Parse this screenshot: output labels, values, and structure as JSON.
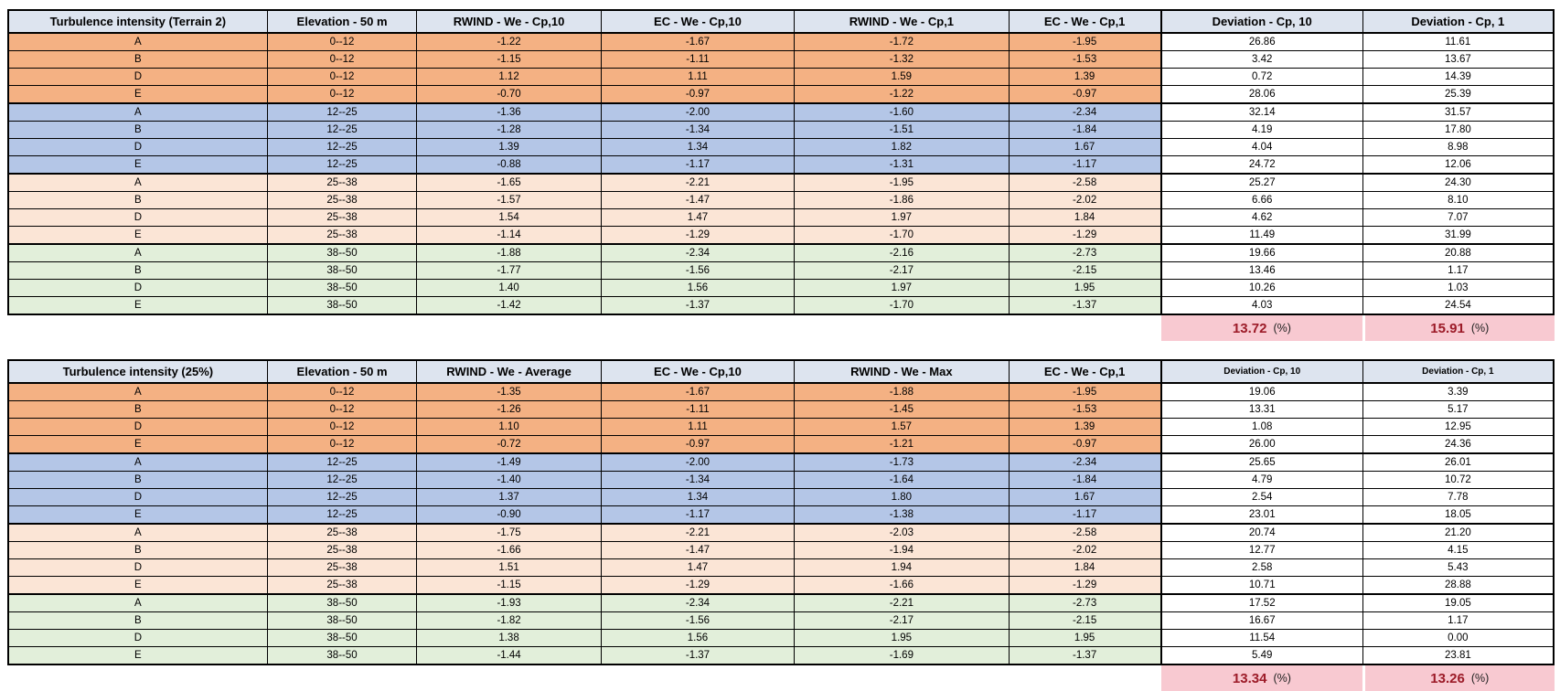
{
  "colors": {
    "header_bg": "#dde4ef",
    "band_orange": "#f4b183",
    "band_blue": "#b4c6e7",
    "band_peach": "#fbe5d6",
    "band_green": "#e2efda",
    "deviation_bg": "#ffffff",
    "summary_bg": "#f8c9d1",
    "summary_value": "#9c1b28",
    "grid_border": "#000000"
  },
  "tables": [
    {
      "title": "Turbulence intensity (Terrain 2)",
      "columns": [
        "Turbulence intensity (Terrain 2)",
        "Elevation - 50 m",
        "RWIND - We - Cp,10",
        "EC - We - Cp,10",
        "RWIND - We - Cp,1",
        "EC - We - Cp,1",
        "Deviation - Cp, 10",
        "Deviation - Cp, 1"
      ],
      "rows": [
        {
          "zone": "A",
          "elevation": "0--12",
          "band": "orange",
          "values": [
            "-1.22",
            "-1.67",
            "-1.72",
            "-1.95"
          ],
          "deviations": [
            "26.86",
            "11.61"
          ]
        },
        {
          "zone": "B",
          "elevation": "0--12",
          "band": "orange",
          "values": [
            "-1.15",
            "-1.11",
            "-1.32",
            "-1.53"
          ],
          "deviations": [
            "3.42",
            "13.67"
          ]
        },
        {
          "zone": "D",
          "elevation": "0--12",
          "band": "orange",
          "values": [
            "1.12",
            "1.11",
            "1.59",
            "1.39"
          ],
          "deviations": [
            "0.72",
            "14.39"
          ]
        },
        {
          "zone": "E",
          "elevation": "0--12",
          "band": "orange",
          "values": [
            "-0.70",
            "-0.97",
            "-1.22",
            "-0.97"
          ],
          "deviations": [
            "28.06",
            "25.39"
          ]
        },
        {
          "zone": "A",
          "elevation": "12--25",
          "band": "blue",
          "values": [
            "-1.36",
            "-2.00",
            "-1.60",
            "-2.34"
          ],
          "deviations": [
            "32.14",
            "31.57"
          ]
        },
        {
          "zone": "B",
          "elevation": "12--25",
          "band": "blue",
          "values": [
            "-1.28",
            "-1.34",
            "-1.51",
            "-1.84"
          ],
          "deviations": [
            "4.19",
            "17.80"
          ]
        },
        {
          "zone": "D",
          "elevation": "12--25",
          "band": "blue",
          "values": [
            "1.39",
            "1.34",
            "1.82",
            "1.67"
          ],
          "deviations": [
            "4.04",
            "8.98"
          ]
        },
        {
          "zone": "E",
          "elevation": "12--25",
          "band": "blue",
          "values": [
            "-0.88",
            "-1.17",
            "-1.31",
            "-1.17"
          ],
          "deviations": [
            "24.72",
            "12.06"
          ]
        },
        {
          "zone": "A",
          "elevation": "25--38",
          "band": "peach",
          "values": [
            "-1.65",
            "-2.21",
            "-1.95",
            "-2.58"
          ],
          "deviations": [
            "25.27",
            "24.30"
          ]
        },
        {
          "zone": "B",
          "elevation": "25--38",
          "band": "peach",
          "values": [
            "-1.57",
            "-1.47",
            "-1.86",
            "-2.02"
          ],
          "deviations": [
            "6.66",
            "8.10"
          ]
        },
        {
          "zone": "D",
          "elevation": "25--38",
          "band": "peach",
          "values": [
            "1.54",
            "1.47",
            "1.97",
            "1.84"
          ],
          "deviations": [
            "4.62",
            "7.07"
          ]
        },
        {
          "zone": "E",
          "elevation": "25--38",
          "band": "peach",
          "values": [
            "-1.14",
            "-1.29",
            "-1.70",
            "-1.29"
          ],
          "deviations": [
            "11.49",
            "31.99"
          ]
        },
        {
          "zone": "A",
          "elevation": "38--50",
          "band": "green",
          "values": [
            "-1.88",
            "-2.34",
            "-2.16",
            "-2.73"
          ],
          "deviations": [
            "19.66",
            "20.88"
          ]
        },
        {
          "zone": "B",
          "elevation": "38--50",
          "band": "green",
          "values": [
            "-1.77",
            "-1.56",
            "-2.17",
            "-2.15"
          ],
          "deviations": [
            "13.46",
            "1.17"
          ]
        },
        {
          "zone": "D",
          "elevation": "38--50",
          "band": "green",
          "values": [
            "1.40",
            "1.56",
            "1.97",
            "1.95"
          ],
          "deviations": [
            "10.26",
            "1.03"
          ]
        },
        {
          "zone": "E",
          "elevation": "38--50",
          "band": "green",
          "values": [
            "-1.42",
            "-1.37",
            "-1.70",
            "-1.37"
          ],
          "deviations": [
            "4.03",
            "24.54"
          ]
        }
      ],
      "summary": {
        "deviation_cp10": "13.72",
        "deviation_cp1": "15.91",
        "unit": "(%)"
      }
    },
    {
      "title": "Turbulence intensity (25%)",
      "columns": [
        "Turbulence intensity (25%)",
        "Elevation - 50 m",
        "RWIND - We - Average",
        "EC - We - Cp,10",
        "RWIND - We - Max",
        "EC - We - Cp,1",
        "Deviation - Cp, 10",
        "Deviation - Cp, 1"
      ],
      "rows": [
        {
          "zone": "A",
          "elevation": "0--12",
          "band": "orange",
          "values": [
            "-1.35",
            "-1.67",
            "-1.88",
            "-1.95"
          ],
          "deviations": [
            "19.06",
            "3.39"
          ]
        },
        {
          "zone": "B",
          "elevation": "0--12",
          "band": "orange",
          "values": [
            "-1.26",
            "-1.11",
            "-1.45",
            "-1.53"
          ],
          "deviations": [
            "13.31",
            "5.17"
          ]
        },
        {
          "zone": "D",
          "elevation": "0--12",
          "band": "orange",
          "values": [
            "1.10",
            "1.11",
            "1.57",
            "1.39"
          ],
          "deviations": [
            "1.08",
            "12.95"
          ]
        },
        {
          "zone": "E",
          "elevation": "0--12",
          "band": "orange",
          "values": [
            "-0.72",
            "-0.97",
            "-1.21",
            "-0.97"
          ],
          "deviations": [
            "26.00",
            "24.36"
          ]
        },
        {
          "zone": "A",
          "elevation": "12--25",
          "band": "blue",
          "values": [
            "-1.49",
            "-2.00",
            "-1.73",
            "-2.34"
          ],
          "deviations": [
            "25.65",
            "26.01"
          ]
        },
        {
          "zone": "B",
          "elevation": "12--25",
          "band": "blue",
          "values": [
            "-1.40",
            "-1.34",
            "-1.64",
            "-1.84"
          ],
          "deviations": [
            "4.79",
            "10.72"
          ]
        },
        {
          "zone": "D",
          "elevation": "12--25",
          "band": "blue",
          "values": [
            "1.37",
            "1.34",
            "1.80",
            "1.67"
          ],
          "deviations": [
            "2.54",
            "7.78"
          ]
        },
        {
          "zone": "E",
          "elevation": "12--25",
          "band": "blue",
          "values": [
            "-0.90",
            "-1.17",
            "-1.38",
            "-1.17"
          ],
          "deviations": [
            "23.01",
            "18.05"
          ]
        },
        {
          "zone": "A",
          "elevation": "25--38",
          "band": "peach",
          "values": [
            "-1.75",
            "-2.21",
            "-2.03",
            "-2.58"
          ],
          "deviations": [
            "20.74",
            "21.20"
          ]
        },
        {
          "zone": "B",
          "elevation": "25--38",
          "band": "peach",
          "values": [
            "-1.66",
            "-1.47",
            "-1.94",
            "-2.02"
          ],
          "deviations": [
            "12.77",
            "4.15"
          ]
        },
        {
          "zone": "D",
          "elevation": "25--38",
          "band": "peach",
          "values": [
            "1.51",
            "1.47",
            "1.94",
            "1.84"
          ],
          "deviations": [
            "2.58",
            "5.43"
          ]
        },
        {
          "zone": "E",
          "elevation": "25--38",
          "band": "peach",
          "values": [
            "-1.15",
            "-1.29",
            "-1.66",
            "-1.29"
          ],
          "deviations": [
            "10.71",
            "28.88"
          ]
        },
        {
          "zone": "A",
          "elevation": "38--50",
          "band": "green",
          "values": [
            "-1.93",
            "-2.34",
            "-2.21",
            "-2.73"
          ],
          "deviations": [
            "17.52",
            "19.05"
          ]
        },
        {
          "zone": "B",
          "elevation": "38--50",
          "band": "green",
          "values": [
            "-1.82",
            "-1.56",
            "-2.17",
            "-2.15"
          ],
          "deviations": [
            "16.67",
            "1.17"
          ]
        },
        {
          "zone": "D",
          "elevation": "38--50",
          "band": "green",
          "values": [
            "1.38",
            "1.56",
            "1.95",
            "1.95"
          ],
          "deviations": [
            "11.54",
            "0.00"
          ]
        },
        {
          "zone": "E",
          "elevation": "38--50",
          "band": "green",
          "values": [
            "-1.44",
            "-1.37",
            "-1.69",
            "-1.37"
          ],
          "deviations": [
            "5.49",
            "23.81"
          ]
        }
      ],
      "summary": {
        "deviation_cp10": "13.34",
        "deviation_cp1": "13.26",
        "unit": "(%)"
      }
    }
  ]
}
